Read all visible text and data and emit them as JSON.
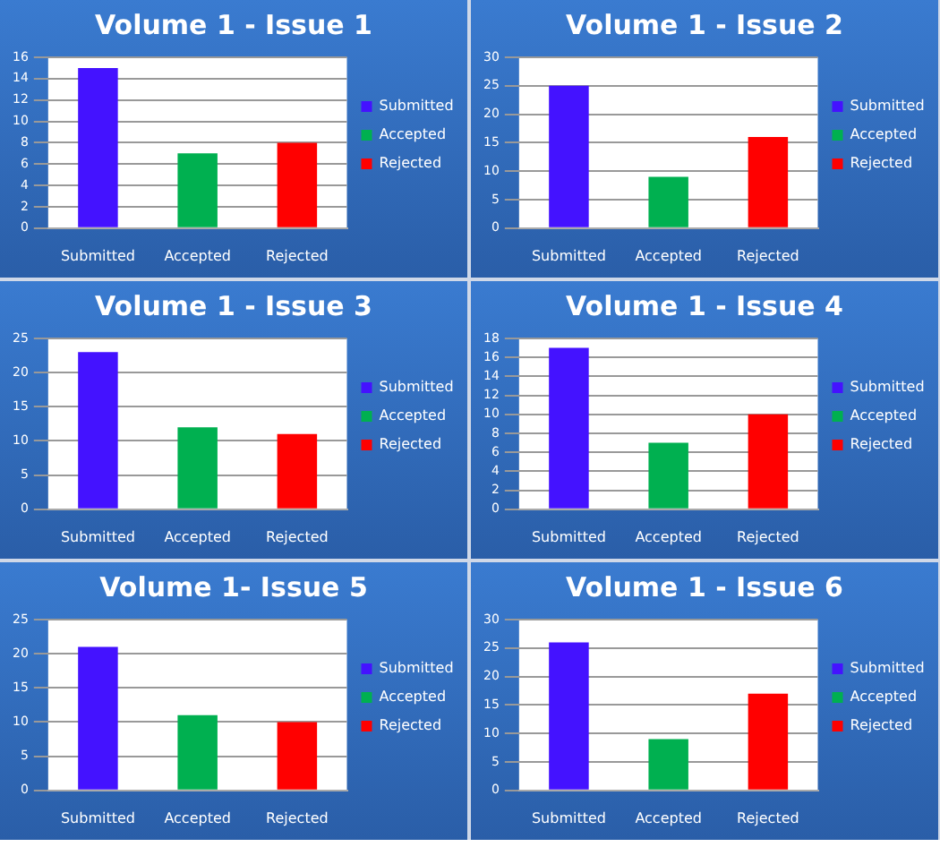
{
  "chart_data": [
    {
      "type": "bar",
      "title": "Volume 1 - Issue 1",
      "categories": [
        "Submitted",
        "Accepted",
        "Rejected"
      ],
      "series": [
        {
          "name": "Submitted",
          "color": "#4412ff",
          "values": [
            15,
            null,
            null
          ]
        },
        {
          "name": "Accepted",
          "color": "#00b050",
          "values": [
            null,
            7,
            null
          ]
        },
        {
          "name": "Rejected",
          "color": "#ff0000",
          "values": [
            null,
            null,
            8
          ]
        }
      ],
      "ylim": [
        0,
        16
      ],
      "yticks": [
        0,
        2,
        4,
        6,
        8,
        10,
        12,
        14,
        16
      ],
      "grid": "y",
      "legend": "right"
    },
    {
      "type": "bar",
      "title": "Volume 1 - Issue 2",
      "categories": [
        "Submitted",
        "Accepted",
        "Rejected"
      ],
      "series": [
        {
          "name": "Submitted",
          "color": "#4412ff",
          "values": [
            25,
            null,
            null
          ]
        },
        {
          "name": "Accepted",
          "color": "#00b050",
          "values": [
            null,
            9,
            null
          ]
        },
        {
          "name": "Rejected",
          "color": "#ff0000",
          "values": [
            null,
            null,
            16
          ]
        }
      ],
      "ylim": [
        0,
        30
      ],
      "yticks": [
        0,
        5,
        10,
        15,
        20,
        25,
        30
      ],
      "grid": "y",
      "legend": "right"
    },
    {
      "type": "bar",
      "title": "Volume 1 - Issue 3",
      "categories": [
        "Submitted",
        "Accepted",
        "Rejected"
      ],
      "series": [
        {
          "name": "Submitted",
          "color": "#4412ff",
          "values": [
            23,
            null,
            null
          ]
        },
        {
          "name": "Accepted",
          "color": "#00b050",
          "values": [
            null,
            12,
            null
          ]
        },
        {
          "name": "Rejected",
          "color": "#ff0000",
          "values": [
            null,
            null,
            11
          ]
        }
      ],
      "ylim": [
        0,
        25
      ],
      "yticks": [
        0,
        5,
        10,
        15,
        20,
        25
      ],
      "grid": "y",
      "legend": "right"
    },
    {
      "type": "bar",
      "title": "Volume 1 - Issue 4",
      "categories": [
        "Submitted",
        "Accepted",
        "Rejected"
      ],
      "series": [
        {
          "name": "Submitted",
          "color": "#4412ff",
          "values": [
            17,
            null,
            null
          ]
        },
        {
          "name": "Accepted",
          "color": "#00b050",
          "values": [
            null,
            7,
            null
          ]
        },
        {
          "name": "Rejected",
          "color": "#ff0000",
          "values": [
            null,
            null,
            10
          ]
        }
      ],
      "ylim": [
        0,
        18
      ],
      "yticks": [
        0,
        2,
        4,
        6,
        8,
        10,
        12,
        14,
        16,
        18
      ],
      "grid": "y",
      "legend": "right"
    },
    {
      "type": "bar",
      "title": "Volume 1- Issue 5",
      "categories": [
        "Submitted",
        "Accepted",
        "Rejected"
      ],
      "series": [
        {
          "name": "Submitted",
          "color": "#4412ff",
          "values": [
            21,
            null,
            null
          ]
        },
        {
          "name": "Accepted",
          "color": "#00b050",
          "values": [
            null,
            11,
            null
          ]
        },
        {
          "name": "Rejected",
          "color": "#ff0000",
          "values": [
            null,
            null,
            10
          ]
        }
      ],
      "ylim": [
        0,
        25
      ],
      "yticks": [
        0,
        5,
        10,
        15,
        20,
        25
      ],
      "grid": "y",
      "legend": "right"
    },
    {
      "type": "bar",
      "title": "Volume 1 - Issue 6",
      "categories": [
        "Submitted",
        "Accepted",
        "Rejected"
      ],
      "series": [
        {
          "name": "Submitted",
          "color": "#4412ff",
          "values": [
            26,
            null,
            null
          ]
        },
        {
          "name": "Accepted",
          "color": "#00b050",
          "values": [
            null,
            9,
            null
          ]
        },
        {
          "name": "Rejected",
          "color": "#ff0000",
          "values": [
            null,
            null,
            17
          ]
        }
      ],
      "ylim": [
        0,
        30
      ],
      "yticks": [
        0,
        5,
        10,
        15,
        20,
        25,
        30
      ],
      "grid": "y",
      "legend": "right"
    }
  ]
}
